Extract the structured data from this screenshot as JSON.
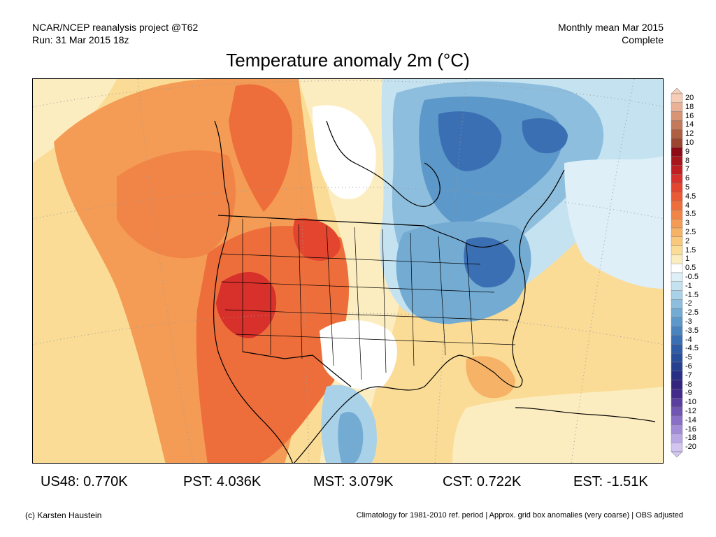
{
  "header": {
    "project": "NCAR/NCEP reanalysis project @T62",
    "run": "Run: 31 Mar 2015 18z",
    "period": "Monthly mean Mar 2015",
    "status": "Complete"
  },
  "title": "Temperature anomaly 2m (°C)",
  "legend": {
    "labels": [
      "20",
      "18",
      "16",
      "14",
      "12",
      "10",
      "9",
      "8",
      "7",
      "6",
      "5",
      "4.5",
      "4",
      "3.5",
      "3",
      "2.5",
      "2",
      "1.5",
      "1",
      "0.5",
      "-0.5",
      "-1",
      "-1.5",
      "-2",
      "-2.5",
      "-3",
      "-3.5",
      "-4",
      "-4.5",
      "-5",
      "-6",
      "-7",
      "-8",
      "-9",
      "-10",
      "-12",
      "-14",
      "-16",
      "-18",
      "-20"
    ],
    "colors": [
      "#f6cdb7",
      "#eab197",
      "#d99473",
      "#c47a5a",
      "#ae5f41",
      "#9b4630",
      "#8e0b16",
      "#a8161c",
      "#c01f22",
      "#d8302a",
      "#e4452f",
      "#ea5a34",
      "#ee6e3b",
      "#f18547",
      "#f49c55",
      "#f6b367",
      "#f8c97c",
      "#fadc96",
      "#fcedc0",
      "#ffffff",
      "#deeff8",
      "#c5e2f1",
      "#a9d1e8",
      "#8dbedd",
      "#73abd3",
      "#5c98c9",
      "#4a84bf",
      "#3b6fb3",
      "#2f5ca7",
      "#274d9b",
      "#263f8f",
      "#2a2f86",
      "#33247e",
      "#412a8a",
      "#5a3f9e",
      "#7155b3",
      "#8a6fc7",
      "#a28bd7",
      "#baa8e5",
      "#d2c6f0"
    ]
  },
  "stats": [
    {
      "label": "US48: 0.770K"
    },
    {
      "label": "PST: 4.036K"
    },
    {
      "label": "MST: 3.079K"
    },
    {
      "label": "CST: 0.722K"
    },
    {
      "label": "EST: -1.51K"
    }
  ],
  "footer": {
    "credit": "(c) Karsten Haustein",
    "note": "Climatology for 1981-2010 ref. period | Approx. grid box anomalies (very coarse) | OBS adjusted"
  }
}
